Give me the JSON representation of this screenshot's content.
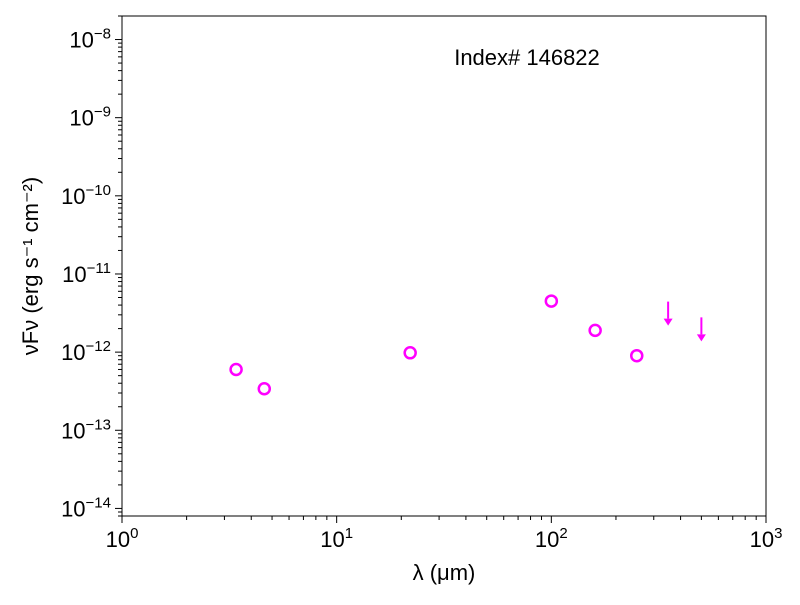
{
  "chart_data": {
    "type": "scatter",
    "title": "",
    "annotation": "Index# 146822",
    "xlabel": "λ (μm)",
    "ylabel": "νFν (erg s⁻¹ cm⁻²)",
    "xscale": "log",
    "yscale": "log",
    "xlim": [
      1,
      1000
    ],
    "ylim": [
      8e-15,
      2e-08
    ],
    "grid": false,
    "legend": "none",
    "x_ticks": [
      {
        "value": 1,
        "base": "10",
        "exp": "0"
      },
      {
        "value": 10,
        "base": "10",
        "exp": "1"
      },
      {
        "value": 100,
        "base": "10",
        "exp": "2"
      },
      {
        "value": 1000,
        "base": "10",
        "exp": "3"
      }
    ],
    "y_ticks": [
      {
        "value": 1e-14,
        "base": "10",
        "exp": "−14"
      },
      {
        "value": 1e-13,
        "base": "10",
        "exp": "−13"
      },
      {
        "value": 1e-12,
        "base": "10",
        "exp": "−12"
      },
      {
        "value": 1e-11,
        "base": "10",
        "exp": "−11"
      },
      {
        "value": 1e-10,
        "base": "10",
        "exp": "−10"
      },
      {
        "value": 1e-09,
        "base": "10",
        "exp": "−9"
      },
      {
        "value": 1e-08,
        "base": "10",
        "exp": "−8"
      }
    ],
    "series": [
      {
        "marker": "open-circle",
        "color": "#ff00ff",
        "points": [
          {
            "x": 3.4,
            "y": 6e-13
          },
          {
            "x": 4.6,
            "y": 3.4e-13
          },
          {
            "x": 22,
            "y": 9.8e-13
          },
          {
            "x": 100,
            "y": 4.5e-12
          },
          {
            "x": 160,
            "y": 1.9e-12
          },
          {
            "x": 250,
            "y": 9e-13
          }
        ]
      },
      {
        "marker": "upper-limit-arrow",
        "color": "#ff00ff",
        "points": [
          {
            "x": 350,
            "y": 3.5e-12
          },
          {
            "x": 500,
            "y": 2.2e-12
          }
        ]
      }
    ]
  }
}
